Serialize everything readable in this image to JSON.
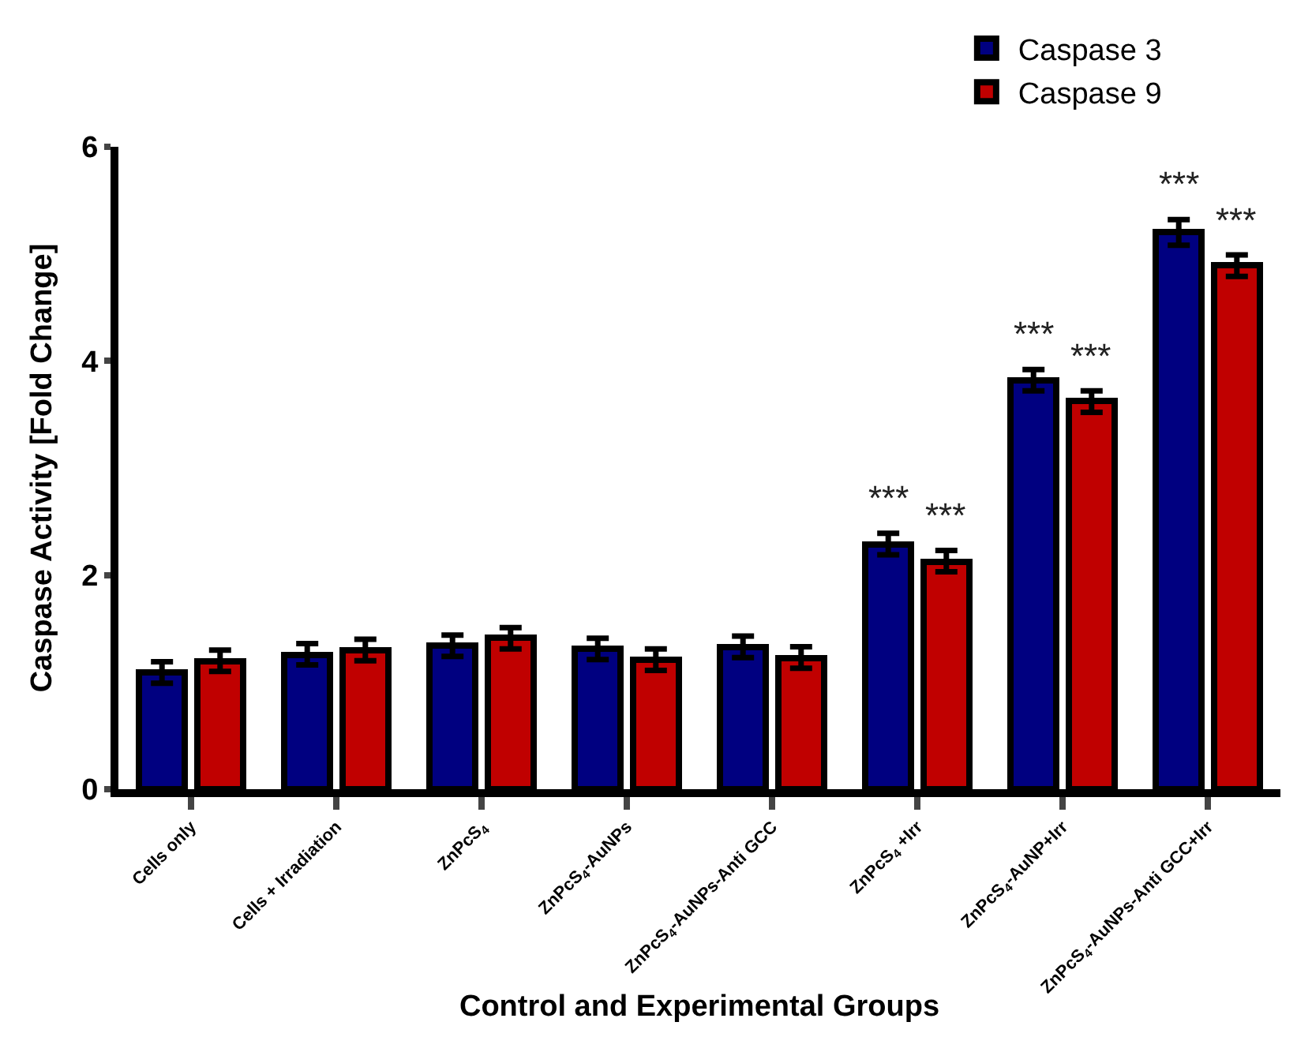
{
  "chart_data": {
    "type": "bar",
    "xlabel": "Control and Experimental Groups",
    "ylabel": "Caspase Activity [Fold Change]",
    "categories": [
      "Cells only",
      "Cells + Irradiation",
      "ZnPcS$_{4}$",
      "ZnPcS$_{4}$-AuNPs",
      "ZnPcS$_{4}$-AuNPs-Anti GCC",
      "ZnPcS$_{4}$ +Irr",
      "ZnPcS$_{4}$-AuNP+Irr",
      "ZnPcS$_{4}$-AuNPs-Anti GCC+Irr"
    ],
    "series": [
      {
        "name": "Caspase 3",
        "color": "#000080",
        "values": [
          1.09,
          1.26,
          1.34,
          1.31,
          1.33,
          2.29,
          3.82,
          5.2
        ],
        "errors": [
          0.1,
          0.1,
          0.1,
          0.1,
          0.1,
          0.1,
          0.1,
          0.12
        ]
      },
      {
        "name": "Caspase 9",
        "color": "#c00000",
        "values": [
          1.2,
          1.3,
          1.41,
          1.21,
          1.23,
          2.13,
          3.62,
          4.89
        ],
        "errors": [
          0.1,
          0.1,
          0.1,
          0.1,
          0.1,
          0.1,
          0.1,
          0.1
        ]
      }
    ],
    "annotations": [
      {
        "text": "***",
        "x": "ZnPcS$_{4}$ +Irr",
        "y": 2.29
      },
      {
        "text": "***",
        "x": "ZnPcS$_{4}$ +Irr",
        "y": 2.13
      },
      {
        "text": "***",
        "x": "ZnPcS$_{4}$-AuNP+Irr",
        "y": 3.82
      },
      {
        "text": "***",
        "x": "ZnPcS$_{4}$-AuNP+Irr",
        "y": 3.62
      },
      {
        "text": "***",
        "x": "ZnPcS$_{4}$-AuNPs-Anti GCC+Irr",
        "y": 5.2
      },
      {
        "text": "***",
        "x": "ZnPcS$_{4}$-AuNPs-Anti GCC+Irr",
        "y": 4.89
      }
    ],
    "ylim": [
      0,
      6
    ],
    "yticks": [
      0,
      2,
      4,
      6
    ],
    "legend": "top right"
  }
}
